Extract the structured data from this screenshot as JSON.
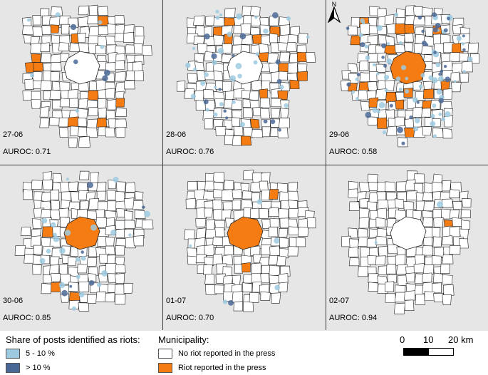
{
  "panels": [
    {
      "date": "27-06",
      "auroc": "AUROC: 0.71",
      "riots": 10,
      "light": 6,
      "dark": 4
    },
    {
      "date": "28-06",
      "auroc": "AUROC: 0.76",
      "riots": 14,
      "light": 30,
      "dark": 14
    },
    {
      "date": "29-06",
      "auroc": "AUROC: 0.58",
      "riots": 18,
      "light": 55,
      "dark": 30
    },
    {
      "date": "30-06",
      "auroc": "AUROC: 0.85",
      "riots": 3,
      "light": 22,
      "dark": 6
    },
    {
      "date": "01-07",
      "auroc": "AUROC: 0.70",
      "riots": 2,
      "light": 5,
      "dark": 1
    },
    {
      "date": "02-07",
      "auroc": "AUROC: 0.94",
      "riots": 1,
      "light": 2,
      "dark": 0
    }
  ],
  "legend": {
    "posts_title": "Share of posts identified as riots:",
    "posts_low": "5 - 10 %",
    "posts_high": "> 10 %",
    "municipality_title": "Municipality:",
    "no_riot": "No riot reported in the press",
    "riot": "Riot reported in the press"
  },
  "scale_bar": {
    "zero": "0",
    "mid": "10",
    "end": "20 km"
  },
  "north_label": "N",
  "colors": {
    "riot": "#f57c12",
    "light_posts": "#9ecae1",
    "dark_posts": "#4a6896",
    "background": "#e6e6e6",
    "municipality": "#ffffff"
  }
}
